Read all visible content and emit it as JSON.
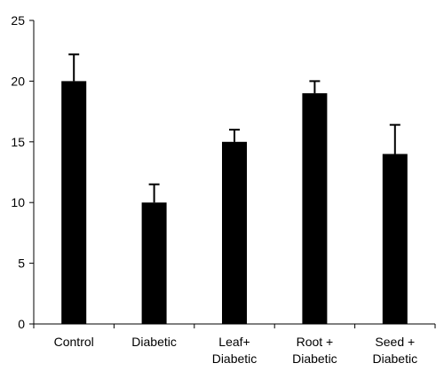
{
  "chart_data": {
    "type": "bar",
    "categories": [
      [
        "Control"
      ],
      [
        "Diabetic"
      ],
      [
        "Leaf+",
        "Diabetic"
      ],
      [
        "Root +",
        "Diabetic"
      ],
      [
        "Seed +",
        "Diabetic"
      ]
    ],
    "values": [
      20,
      10,
      15,
      19,
      14
    ],
    "errors": [
      2.2,
      1.5,
      1.0,
      1.0,
      2.4
    ],
    "title": "",
    "xlabel": "",
    "ylabel": "",
    "ylim": [
      0,
      25
    ],
    "yticks": [
      0,
      5,
      10,
      15,
      20,
      25
    ],
    "grid": false,
    "bar_color": "#000000"
  }
}
